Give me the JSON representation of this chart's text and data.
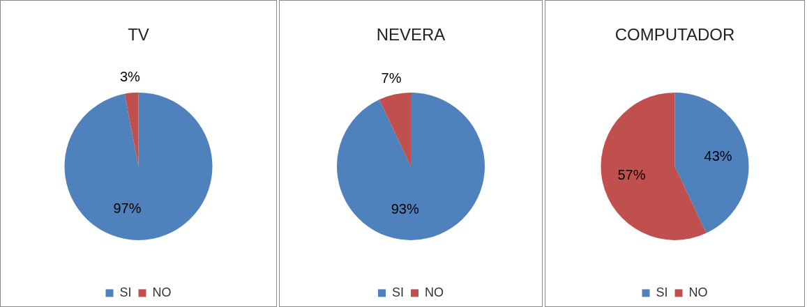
{
  "chart_data": [
    {
      "type": "pie",
      "title": "TV",
      "categories": [
        "SI",
        "NO"
      ],
      "values": [
        97,
        3
      ],
      "colors": [
        "#4f81bd",
        "#c0504d"
      ],
      "value_labels": [
        "97%",
        "3%"
      ],
      "legend": "bottom"
    },
    {
      "type": "pie",
      "title": "NEVERA",
      "categories": [
        "SI",
        "NO"
      ],
      "values": [
        93,
        7
      ],
      "colors": [
        "#4f81bd",
        "#c0504d"
      ],
      "value_labels": [
        "93%",
        "7%"
      ],
      "legend": "bottom"
    },
    {
      "type": "pie",
      "title": "COMPUTADOR",
      "categories": [
        "SI",
        "NO"
      ],
      "values": [
        43,
        57
      ],
      "colors": [
        "#4f81bd",
        "#c0504d"
      ],
      "value_labels": [
        "43%",
        "57%"
      ],
      "legend": "bottom"
    }
  ]
}
